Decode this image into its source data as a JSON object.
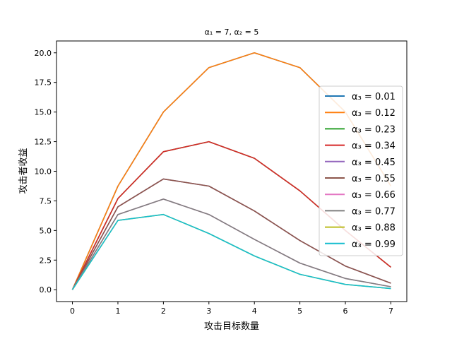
{
  "chart_data": {
    "type": "line",
    "title": "α₁ = 7, α₂ = 5",
    "xlabel": "攻击目标数量",
    "ylabel": "攻击者收益",
    "xlim": [
      -0.35,
      7.35
    ],
    "ylim": [
      -1.0,
      21.0
    ],
    "xticks": [
      0,
      1,
      2,
      3,
      4,
      5,
      6,
      7
    ],
    "xtick_labels": [
      "0",
      "1",
      "2",
      "3",
      "4",
      "5",
      "6",
      "7"
    ],
    "yticks": [
      0,
      2.5,
      5,
      7.5,
      10,
      12.5,
      15,
      17.5,
      20
    ],
    "ytick_labels": [
      "0.0",
      "2.5",
      "5.0",
      "7.5",
      "10.0",
      "12.5",
      "15.0",
      "17.5",
      "20.0"
    ],
    "grid": false,
    "legend_position": "right",
    "x": [
      0,
      1,
      2,
      3,
      4,
      5,
      6,
      7
    ],
    "series": [
      {
        "name": "α₃ = 0.01",
        "color": "#1f77b4",
        "values": [
          0,
          8.75,
          15.0,
          18.75,
          20.0,
          18.75,
          15.0,
          8.75
        ]
      },
      {
        "name": "α₃ = 0.12",
        "color": "#ff7f0e",
        "values": [
          0,
          8.75,
          15.0,
          18.75,
          20.0,
          18.75,
          15.0,
          8.75
        ]
      },
      {
        "name": "α₃ = 0.23",
        "color": "#2ca02c",
        "values": [
          0,
          7.7,
          11.65,
          12.5,
          11.1,
          8.35,
          5.0,
          1.9
        ]
      },
      {
        "name": "α₃ = 0.34",
        "color": "#d62728",
        "values": [
          0,
          7.7,
          11.65,
          12.5,
          11.1,
          8.35,
          5.0,
          1.9
        ]
      },
      {
        "name": "α₃ = 0.45",
        "color": "#9467bd",
        "values": [
          0,
          7.0,
          9.35,
          8.75,
          6.65,
          4.15,
          2.0,
          0.55
        ]
      },
      {
        "name": "α₃ = 0.55",
        "color": "#8c564b",
        "values": [
          0,
          7.0,
          9.35,
          8.75,
          6.65,
          4.15,
          2.0,
          0.55
        ]
      },
      {
        "name": "α₃ = 0.66",
        "color": "#e377c2",
        "values": [
          0,
          6.35,
          7.65,
          6.35,
          4.25,
          2.25,
          0.95,
          0.25
        ]
      },
      {
        "name": "α₃ = 0.77",
        "color": "#7f7f7f",
        "values": [
          0,
          6.35,
          7.65,
          6.35,
          4.25,
          2.25,
          0.95,
          0.25
        ]
      },
      {
        "name": "α₃ = 0.88",
        "color": "#bcbd22",
        "values": [
          0,
          5.85,
          6.35,
          4.75,
          2.85,
          1.3,
          0.45,
          0.1
        ]
      },
      {
        "name": "α₃ = 0.99",
        "color": "#17becf",
        "values": [
          0,
          5.85,
          6.35,
          4.75,
          2.85,
          1.3,
          0.45,
          0.1
        ]
      }
    ]
  }
}
